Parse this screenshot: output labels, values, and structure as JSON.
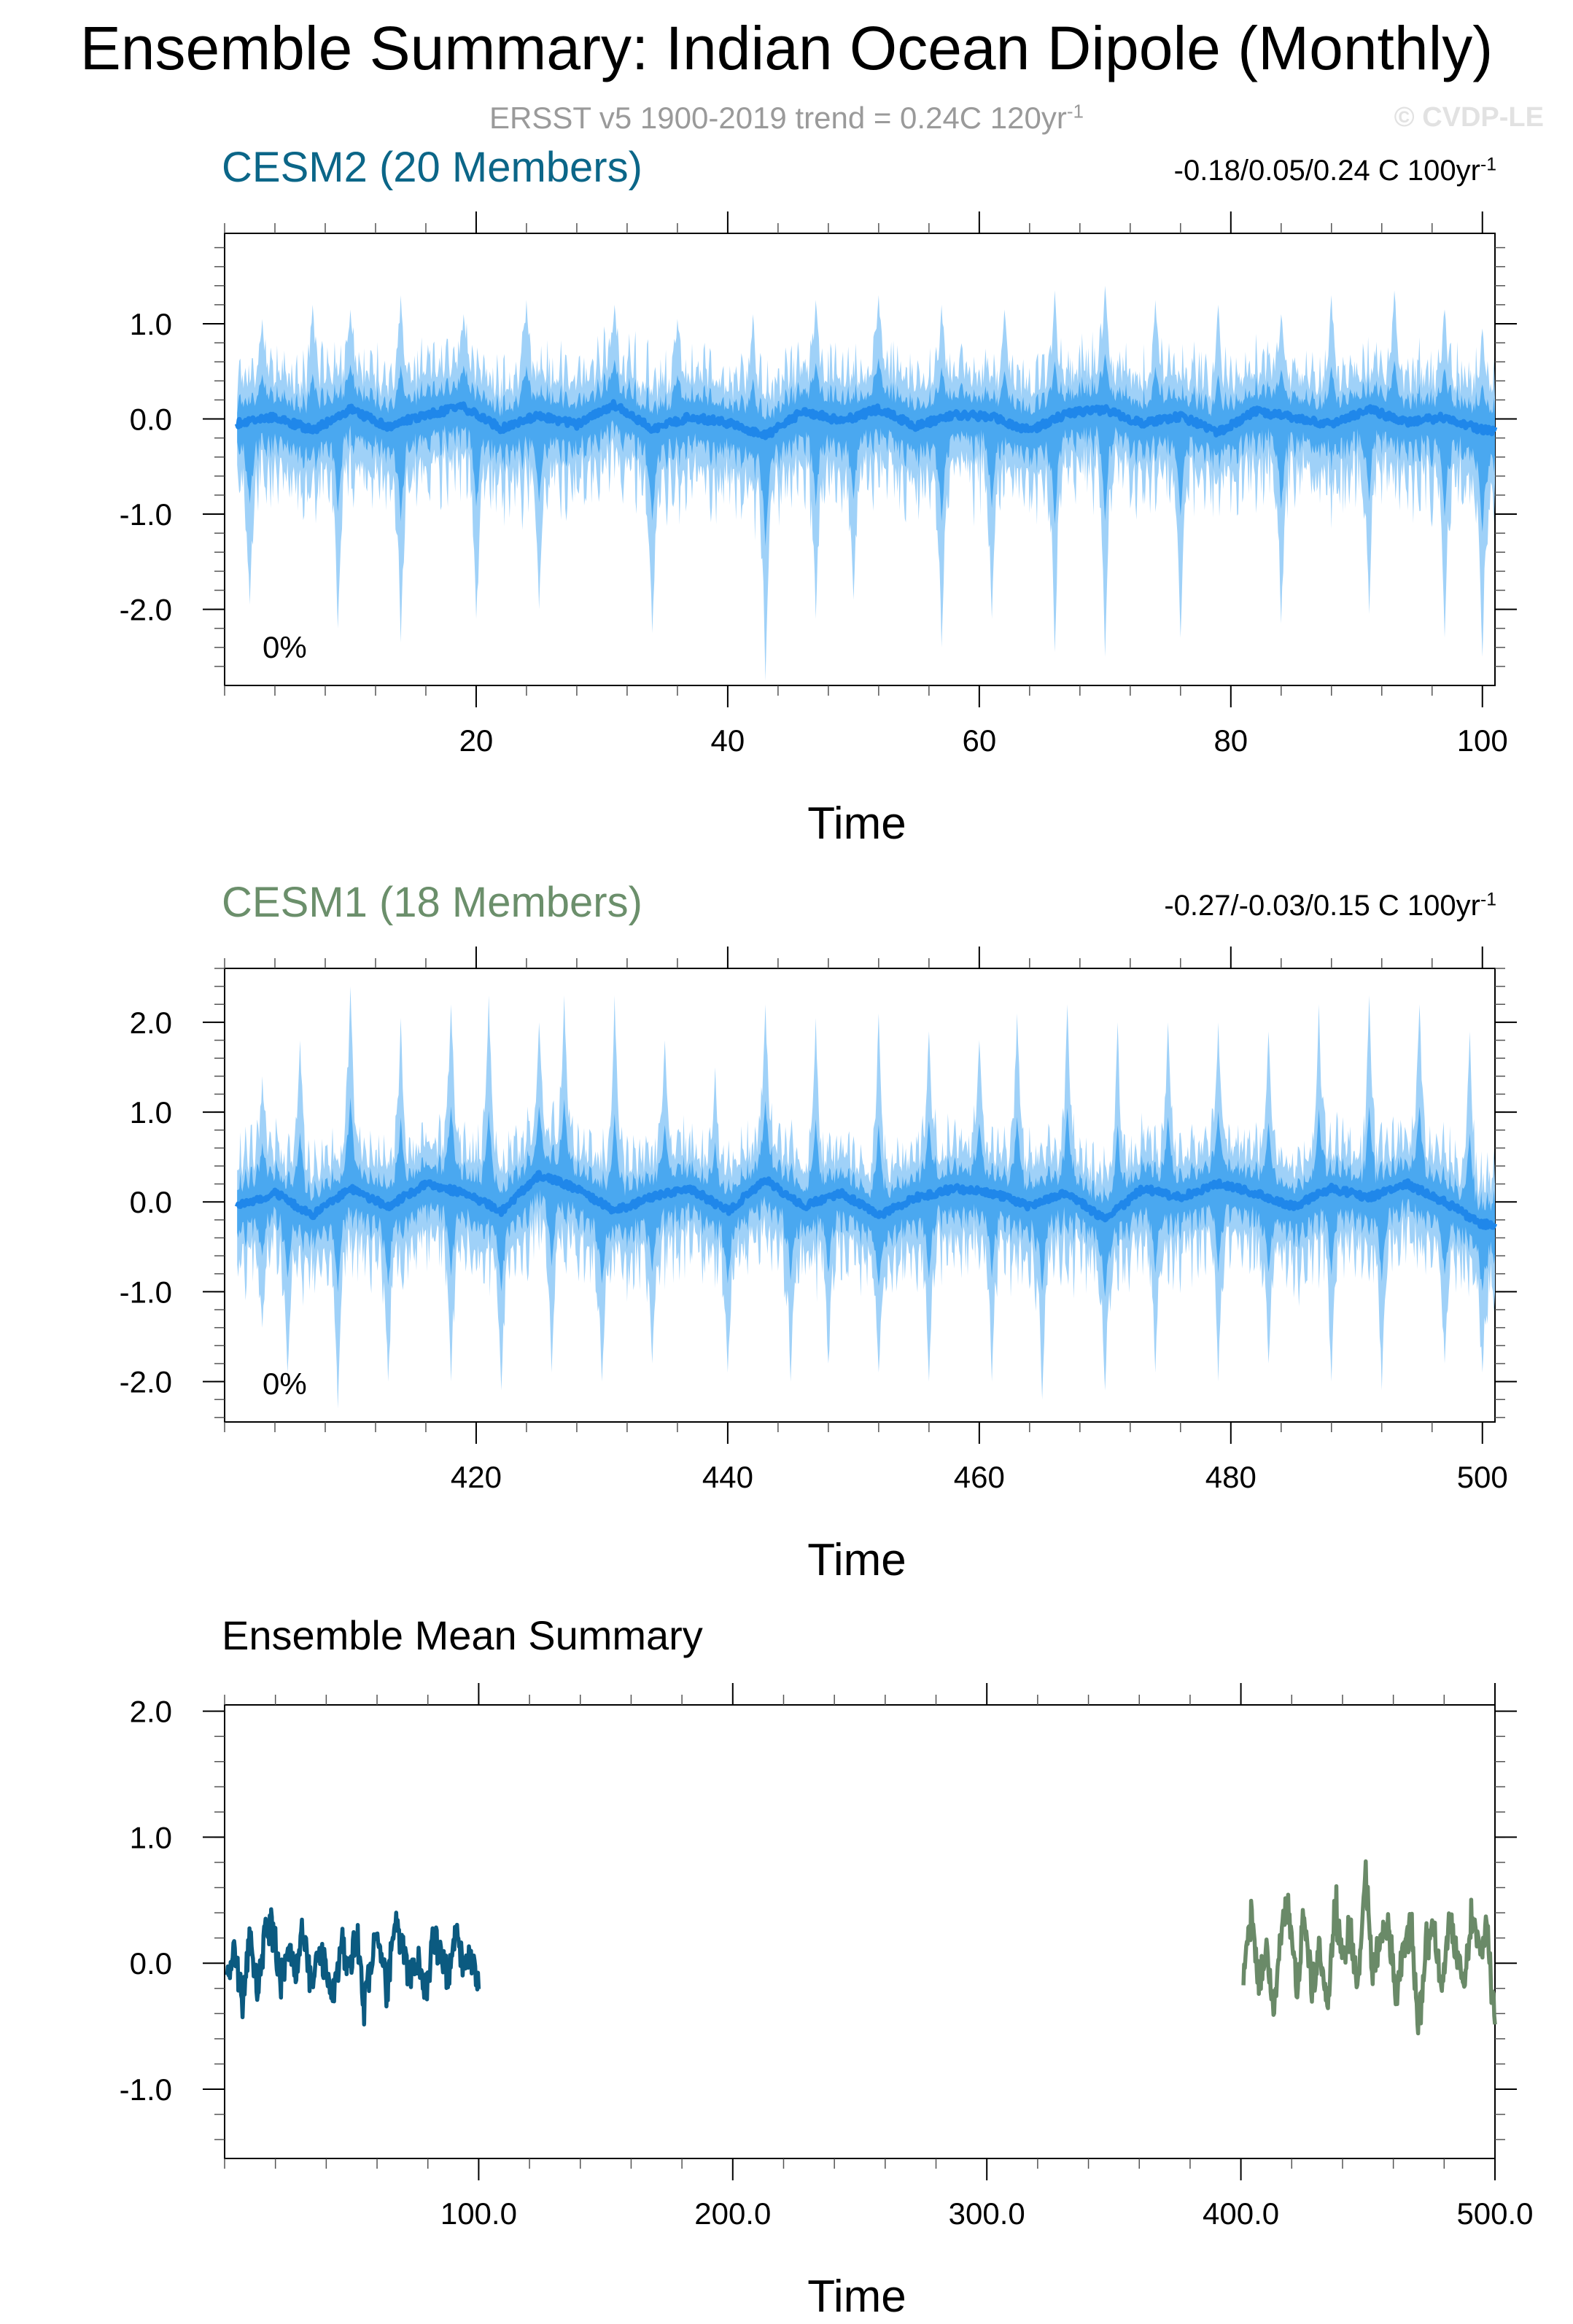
{
  "title": "Ensemble Summary: Indian Ocean Dipole (Monthly)",
  "subtitle": {
    "text": "ERSST v5 1900-2019 trend = 0.24C 120yr",
    "sup": "-1"
  },
  "watermark": "© CVDP-LE",
  "colors": {
    "band_light": "#9fd1f8",
    "band_mid": "#4aa8f0",
    "ens_line": "#1f87ea",
    "cesm2_title": "#0b6688",
    "cesm1_title": "#6b8f6b",
    "mean_cesm2": "#0b5a80",
    "mean_cesm1": "#6a8a68",
    "subtitle": "#9a9a9a",
    "watermark": "#e2e2e2"
  },
  "chart_data": [
    {
      "type": "area",
      "title": "CESM2 (20 Members)",
      "trend": {
        "text": "-0.18/0.05/0.24 C 100yr",
        "sup": "-1"
      },
      "percent_label": "0%",
      "xlabel": "Time",
      "xlim": [
        0,
        101
      ],
      "ylim": [
        -2.8,
        1.95
      ],
      "xticks": [
        20,
        40,
        60,
        80,
        100
      ],
      "xtick_labels": [
        "20",
        "40",
        "60",
        "80",
        "100"
      ],
      "yticks": [
        1.0,
        0.0,
        -1.0,
        -2.0
      ],
      "ytick_labels": [
        "1.0",
        "0.0",
        "-1.0",
        "-2.0"
      ],
      "series": [
        {
          "role": "ensemble-range-outer",
          "x_start": 1,
          "x_end": 101,
          "spikes_upper": [
            [
              3,
              1.05
            ],
            [
              7,
              1.2
            ],
            [
              10,
              1.15
            ],
            [
              14,
              1.3
            ],
            [
              19,
              1.1
            ],
            [
              24,
              1.25
            ],
            [
              31,
              1.2
            ],
            [
              36,
              1.05
            ],
            [
              42,
              1.1
            ],
            [
              47,
              1.25
            ],
            [
              52,
              1.3
            ],
            [
              57,
              1.2
            ],
            [
              62,
              1.15
            ],
            [
              66,
              1.35
            ],
            [
              70,
              1.4
            ],
            [
              74,
              1.25
            ],
            [
              79,
              1.2
            ],
            [
              84,
              1.1
            ],
            [
              88,
              1.3
            ],
            [
              93,
              1.35
            ],
            [
              97,
              1.15
            ],
            [
              100,
              0.95
            ]
          ],
          "spikes_lower": [
            [
              2,
              -1.95
            ],
            [
              9,
              -2.2
            ],
            [
              14,
              -2.35
            ],
            [
              20,
              -2.1
            ],
            [
              25,
              -2.0
            ],
            [
              34,
              -2.25
            ],
            [
              43,
              -2.75
            ],
            [
              47,
              -2.1
            ],
            [
              50,
              -1.9
            ],
            [
              57,
              -2.4
            ],
            [
              61,
              -2.1
            ],
            [
              66,
              -2.45
            ],
            [
              70,
              -2.5
            ],
            [
              76,
              -2.3
            ],
            [
              84,
              -2.15
            ],
            [
              91,
              -2.05
            ],
            [
              97,
              -2.3
            ],
            [
              100,
              -2.5
            ]
          ]
        },
        {
          "role": "ensemble-mean",
          "x": [
            1,
            4,
            7,
            10,
            13,
            16,
            19,
            22,
            25,
            28,
            31,
            34,
            37,
            40,
            43,
            46,
            49,
            52,
            55,
            58,
            61,
            64,
            67,
            70,
            73,
            76,
            79,
            82,
            85,
            88,
            91,
            94,
            97,
            100
          ],
          "y": [
            -0.05,
            0.02,
            -0.12,
            0.1,
            -0.08,
            0.05,
            0.12,
            -0.1,
            0.04,
            -0.06,
            0.15,
            -0.1,
            0.02,
            -0.04,
            -0.18,
            0.08,
            -0.02,
            0.1,
            -0.08,
            0.05,
            0.02,
            -0.12,
            0.06,
            0.1,
            -0.05,
            0.03,
            -0.14,
            0.08,
            0.02,
            -0.06,
            0.1,
            -0.04,
            0.02,
            -0.12
          ]
        }
      ]
    },
    {
      "type": "area",
      "title": "CESM1 (18 Members)",
      "trend": {
        "text": "-0.27/-0.03/0.15 C 100yr",
        "sup": "-1"
      },
      "percent_label": "0%",
      "xlabel": "Time",
      "xlim": [
        400,
        501
      ],
      "ylim": [
        -2.45,
        2.6
      ],
      "xticks": [
        420,
        440,
        460,
        480,
        500
      ],
      "xtick_labels": [
        "420",
        "440",
        "460",
        "480",
        "500"
      ],
      "yticks": [
        2.0,
        1.0,
        0.0,
        -1.0,
        -2.0
      ],
      "ytick_labels": [
        "2.0",
        "1.0",
        "0.0",
        "-1.0",
        "-2.0"
      ],
      "series": [
        {
          "role": "ensemble-range-outer",
          "x_start": 401,
          "x_end": 501,
          "spikes_upper": [
            [
              403,
              1.4
            ],
            [
              406,
              1.8
            ],
            [
              410,
              2.4
            ],
            [
              414,
              2.05
            ],
            [
              418,
              2.2
            ],
            [
              421,
              2.3
            ],
            [
              425,
              2.0
            ],
            [
              427,
              2.3
            ],
            [
              431,
              2.3
            ],
            [
              435,
              1.8
            ],
            [
              439,
              1.5
            ],
            [
              443,
              2.2
            ],
            [
              447,
              2.05
            ],
            [
              452,
              2.1
            ],
            [
              456,
              1.9
            ],
            [
              460,
              1.8
            ],
            [
              463,
              2.1
            ],
            [
              467,
              2.2
            ],
            [
              471,
              2.0
            ],
            [
              475,
              2.0
            ],
            [
              479,
              2.0
            ],
            [
              483,
              1.9
            ],
            [
              487,
              2.2
            ],
            [
              491,
              2.3
            ],
            [
              495,
              2.2
            ],
            [
              499,
              1.9
            ]
          ],
          "spikes_lower": [
            [
              403,
              -1.4
            ],
            [
              405,
              -1.9
            ],
            [
              409,
              -2.3
            ],
            [
              413,
              -2.0
            ],
            [
              418,
              -2.0
            ],
            [
              422,
              -2.1
            ],
            [
              426,
              -1.9
            ],
            [
              430,
              -2.0
            ],
            [
              434,
              -1.8
            ],
            [
              440,
              -1.9
            ],
            [
              445,
              -2.0
            ],
            [
              448,
              -1.8
            ],
            [
              452,
              -1.9
            ],
            [
              456,
              -2.0
            ],
            [
              461,
              -2.0
            ],
            [
              465,
              -2.2
            ],
            [
              470,
              -2.1
            ],
            [
              474,
              -1.9
            ],
            [
              479,
              -2.0
            ],
            [
              483,
              -1.8
            ],
            [
              488,
              -2.0
            ],
            [
              492,
              -2.1
            ],
            [
              497,
              -1.8
            ],
            [
              500,
              -1.9
            ]
          ]
        },
        {
          "role": "ensemble-mean",
          "x": [
            401,
            404,
            407,
            410,
            413,
            416,
            419,
            422,
            425,
            428,
            431,
            434,
            437,
            440,
            443,
            446,
            449,
            452,
            455,
            458,
            461,
            464,
            467,
            470,
            473,
            476,
            479,
            482,
            485,
            488,
            491,
            494,
            497,
            500
          ],
          "y": [
            -0.05,
            0.1,
            -0.15,
            0.15,
            -0.05,
            0.2,
            0.1,
            -0.1,
            0.3,
            0.15,
            -0.1,
            0.05,
            0.15,
            -0.1,
            0.25,
            -0.05,
            0.1,
            -0.15,
            0.05,
            0.15,
            0.1,
            -0.05,
            0.1,
            -0.2,
            0.15,
            0.05,
            0.2,
            0.1,
            -0.05,
            0.15,
            0.05,
            0.2,
            0.0,
            -0.25
          ]
        }
      ]
    },
    {
      "type": "line",
      "title": "Ensemble Mean Summary",
      "xlabel": "Time",
      "xlim": [
        0,
        500
      ],
      "ylim": [
        -1.55,
        2.05
      ],
      "xticks": [
        100,
        200,
        300,
        400,
        500
      ],
      "xtick_labels": [
        "100.0",
        "200.0",
        "300.0",
        "400.0",
        "500.0"
      ],
      "yticks": [
        2.0,
        1.0,
        0.0,
        -1.0
      ],
      "ytick_labels": [
        "2.0",
        "1.0",
        "0.0",
        "-1.0"
      ],
      "series": [
        {
          "role": "cesm2-mean",
          "x": [
            1,
            4,
            7,
            10,
            13,
            16,
            19,
            22,
            25,
            28,
            31,
            34,
            37,
            40,
            43,
            46,
            49,
            52,
            55,
            58,
            61,
            64,
            67,
            70,
            73,
            76,
            79,
            82,
            85,
            88,
            91,
            94,
            97,
            100
          ],
          "y": [
            -0.05,
            0.1,
            -0.4,
            0.25,
            -0.3,
            0.3,
            0.35,
            -0.2,
            0.15,
            -0.1,
            0.3,
            -0.2,
            0.1,
            -0.05,
            -0.35,
            0.2,
            -0.1,
            0.3,
            -0.45,
            0.1,
            0.2,
            -0.3,
            0.45,
            0.15,
            -0.15,
            0.05,
            -0.4,
            0.25,
            0.1,
            -0.15,
            0.3,
            -0.05,
            0.05,
            -0.25
          ]
        },
        {
          "role": "cesm1-mean",
          "x": [
            401,
            404,
            407,
            410,
            413,
            416,
            419,
            422,
            425,
            428,
            431,
            434,
            437,
            440,
            443,
            446,
            449,
            452,
            455,
            458,
            461,
            464,
            467,
            470,
            473,
            476,
            479,
            482,
            485,
            488,
            491,
            494,
            497,
            500
          ],
          "y": [
            -0.1,
            0.4,
            -0.2,
            0.2,
            -0.5,
            0.35,
            0.45,
            -0.3,
            0.5,
            -0.25,
            0.2,
            -0.55,
            0.6,
            0.05,
            0.3,
            -0.2,
            0.85,
            -0.1,
            0.25,
            0.45,
            -0.35,
            0.15,
            0.4,
            -0.7,
            0.2,
            0.3,
            -0.2,
            0.45,
            0.1,
            -0.2,
            0.5,
            0.05,
            0.35,
            -0.65
          ]
        }
      ]
    }
  ]
}
